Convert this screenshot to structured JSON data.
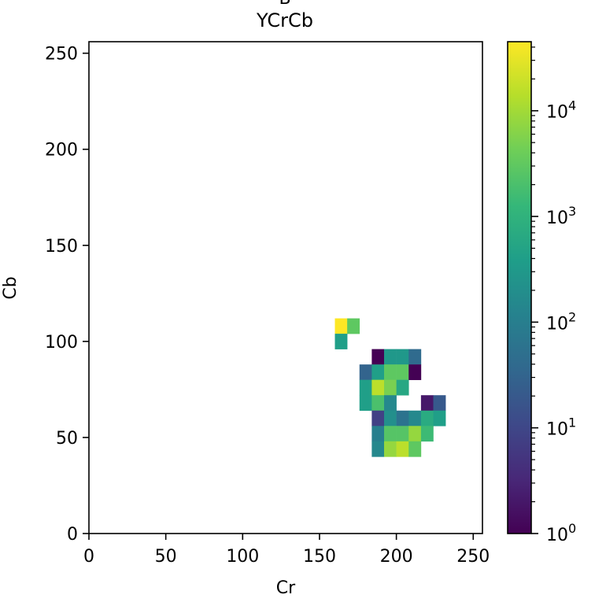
{
  "chart_data": {
    "type": "heatmap",
    "title_cut": "B",
    "title": "YCrCb",
    "xlabel": "Cr",
    "ylabel": "Cb",
    "xlim": [
      0,
      256
    ],
    "ylim": [
      0,
      256
    ],
    "xticks": [
      0,
      50,
      100,
      150,
      200,
      250
    ],
    "yticks": [
      0,
      50,
      100,
      150,
      200,
      250
    ],
    "bin_size": 8,
    "colorbar": {
      "scale": "log",
      "range": [
        1,
        45000
      ],
      "ticks": [
        {
          "base": "10",
          "exp": "0",
          "value": 1
        },
        {
          "base": "10",
          "exp": "1",
          "value": 10
        },
        {
          "base": "10",
          "exp": "2",
          "value": 100
        },
        {
          "base": "10",
          "exp": "3",
          "value": 1000
        },
        {
          "base": "10",
          "exp": "4",
          "value": 10000
        }
      ],
      "colormap": [
        "#440154",
        "#482878",
        "#3e4989",
        "#31688e",
        "#26828e",
        "#1f9e89",
        "#35b779",
        "#6ece58",
        "#b5de2b",
        "#fde725"
      ]
    },
    "cells": [
      {
        "cr": 160,
        "cb": 104,
        "count": 45000
      },
      {
        "cr": 168,
        "cb": 104,
        "count": 3000
      },
      {
        "cr": 160,
        "cb": 96,
        "count": 400
      },
      {
        "cr": 184,
        "cb": 88,
        "count": 1
      },
      {
        "cr": 192,
        "cb": 88,
        "count": 300
      },
      {
        "cr": 200,
        "cb": 88,
        "count": 300
      },
      {
        "cr": 208,
        "cb": 88,
        "count": 40
      },
      {
        "cr": 176,
        "cb": 80,
        "count": 30
      },
      {
        "cr": 184,
        "cb": 80,
        "count": 400
      },
      {
        "cr": 192,
        "cb": 80,
        "count": 3000
      },
      {
        "cr": 200,
        "cb": 80,
        "count": 3000
      },
      {
        "cr": 208,
        "cb": 80,
        "count": 1
      },
      {
        "cr": 176,
        "cb": 72,
        "count": 400
      },
      {
        "cr": 184,
        "cb": 72,
        "count": 15000
      },
      {
        "cr": 192,
        "cb": 72,
        "count": 5000
      },
      {
        "cr": 200,
        "cb": 72,
        "count": 600
      },
      {
        "cr": 176,
        "cb": 64,
        "count": 400
      },
      {
        "cr": 184,
        "cb": 64,
        "count": 2000
      },
      {
        "cr": 192,
        "cb": 64,
        "count": 150
      },
      {
        "cr": 216,
        "cb": 64,
        "count": 2
      },
      {
        "cr": 224,
        "cb": 64,
        "count": 20
      },
      {
        "cr": 184,
        "cb": 56,
        "count": 8
      },
      {
        "cr": 192,
        "cb": 56,
        "count": 200
      },
      {
        "cr": 200,
        "cb": 56,
        "count": 60
      },
      {
        "cr": 208,
        "cb": 56,
        "count": 150
      },
      {
        "cr": 216,
        "cb": 56,
        "count": 700
      },
      {
        "cr": 224,
        "cb": 56,
        "count": 400
      },
      {
        "cr": 184,
        "cb": 48,
        "count": 100
      },
      {
        "cr": 192,
        "cb": 48,
        "count": 2500
      },
      {
        "cr": 200,
        "cb": 48,
        "count": 2500
      },
      {
        "cr": 208,
        "cb": 48,
        "count": 8000
      },
      {
        "cr": 216,
        "cb": 48,
        "count": 1500
      },
      {
        "cr": 184,
        "cb": 40,
        "count": 150
      },
      {
        "cr": 192,
        "cb": 40,
        "count": 8000
      },
      {
        "cr": 200,
        "cb": 40,
        "count": 15000
      },
      {
        "cr": 208,
        "cb": 40,
        "count": 3000
      }
    ]
  }
}
